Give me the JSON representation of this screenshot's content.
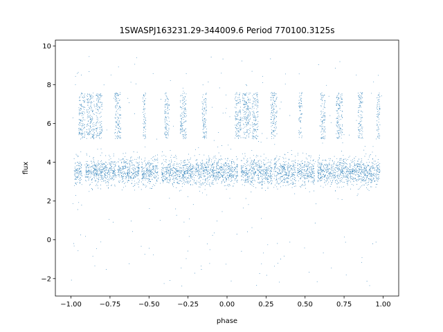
{
  "chart_data": {
    "type": "scatter",
    "title": "1SWASPJ163231.29-344009.6 Period 770100.3125s",
    "xlabel": "phase",
    "ylabel": "flux",
    "xlim": [
      -1.1,
      1.1
    ],
    "ylim": [
      -2.9,
      10.3
    ],
    "xticks": [
      -1.0,
      -0.75,
      -0.5,
      -0.25,
      0.0,
      0.25,
      0.5,
      0.75,
      1.0
    ],
    "xtick_labels": [
      "−1.00",
      "−0.75",
      "−0.50",
      "−0.25",
      "0.00",
      "0.25",
      "0.50",
      "0.75",
      "1.00"
    ],
    "yticks": [
      -2,
      0,
      2,
      4,
      6,
      8,
      10
    ],
    "ytick_labels": [
      "−2",
      "0",
      "2",
      "4",
      "6",
      "8",
      "10"
    ],
    "grid": false,
    "marker_color": "#1f77b4",
    "phase_range": [
      -1.0,
      1.0
    ],
    "baseline": {
      "center": 3.5,
      "spread": 0.35,
      "segments": [
        [
          -0.98,
          -0.93
        ],
        [
          -0.91,
          -0.71
        ],
        [
          -0.7,
          -0.56
        ],
        [
          -0.55,
          -0.44
        ],
        [
          -0.42,
          -0.24
        ],
        [
          -0.24,
          0.07
        ],
        [
          0.09,
          0.29
        ],
        [
          0.3,
          0.44
        ],
        [
          0.45,
          0.56
        ],
        [
          0.58,
          0.76
        ],
        [
          0.76,
          0.98
        ]
      ]
    },
    "bright_states": {
      "level_range": [
        5.2,
        7.6
      ],
      "segments": [
        [
          -0.95,
          -0.91
        ],
        [
          -0.9,
          -0.85
        ],
        [
          -0.84,
          -0.8
        ],
        [
          -0.72,
          -0.68
        ],
        [
          -0.54,
          -0.52
        ],
        [
          -0.4,
          -0.37
        ],
        [
          -0.3,
          -0.26
        ],
        [
          -0.16,
          -0.13
        ],
        [
          0.05,
          0.09
        ],
        [
          0.1,
          0.15
        ],
        [
          0.16,
          0.2
        ],
        [
          0.28,
          0.32
        ],
        [
          0.46,
          0.48
        ],
        [
          0.6,
          0.63
        ],
        [
          0.7,
          0.74
        ],
        [
          0.84,
          0.87
        ],
        [
          0.96,
          0.98
        ]
      ]
    },
    "outliers": {
      "y_range": [
        -2.4,
        9.6
      ],
      "fraction": 0.04
    }
  }
}
